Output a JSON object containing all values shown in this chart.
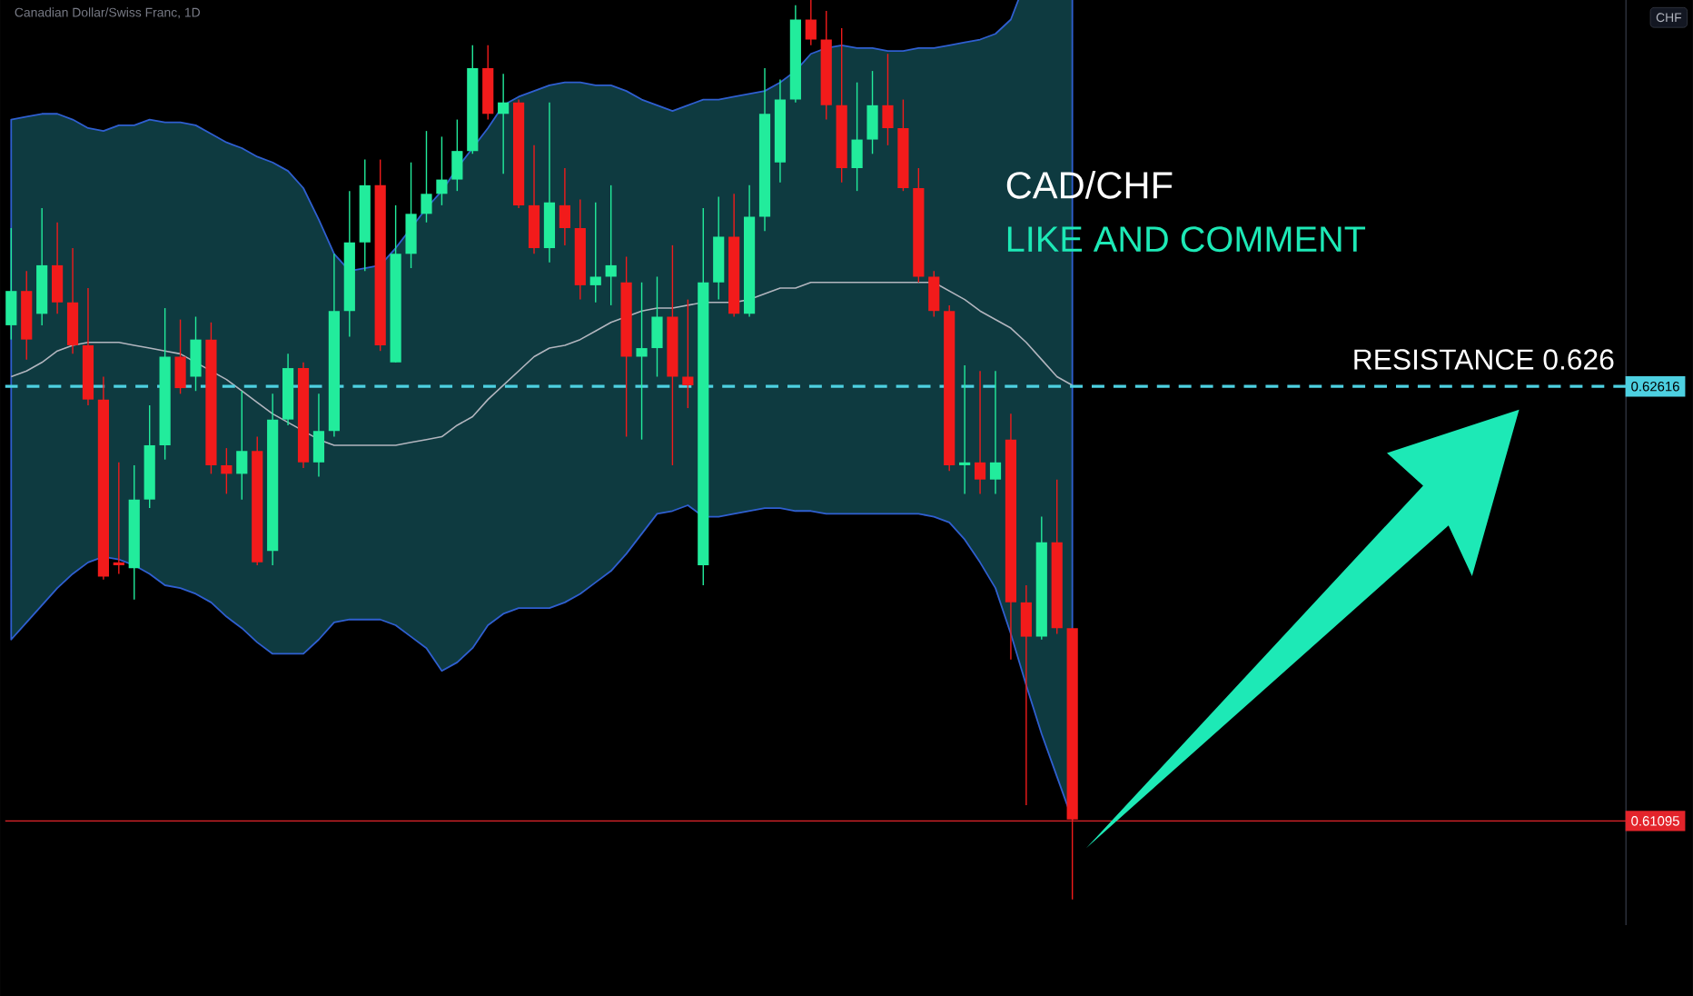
{
  "chart_data": {
    "type": "candlestick",
    "title": "CAD/CHF",
    "subtitle": "LIKE AND COMMENT",
    "annotations": [
      "Canadian Dollar/Swiss Franc, 1D",
      "CHF",
      {
        "text": "RESISTANCE 0.626",
        "y": 0.62616
      }
    ],
    "categories": [
      null,
      null,
      null,
      null,
      null,
      null,
      null,
      null,
      null,
      null,
      null,
      null,
      null,
      null,
      null,
      null,
      null,
      null,
      null,
      null,
      null,
      null,
      null,
      null,
      null,
      null,
      null,
      null,
      null,
      null,
      null,
      null,
      null,
      null,
      null,
      null,
      null,
      null,
      null,
      null,
      null,
      null,
      null,
      null,
      null,
      null,
      null,
      null,
      null,
      null,
      null,
      null,
      null,
      null,
      null,
      null,
      null,
      null,
      null,
      null,
      null,
      null,
      null,
      null,
      null,
      null,
      null,
      null,
      null,
      null
    ],
    "ohlc": [
      [
        0.6283,
        0.6317,
        0.6278,
        0.6295
      ],
      [
        0.6295,
        0.6302,
        0.6271,
        0.6278
      ],
      [
        0.6287,
        0.6324,
        0.6283,
        0.6304
      ],
      [
        0.6304,
        0.6319,
        0.6287,
        0.6291
      ],
      [
        0.6291,
        0.631,
        0.6273,
        0.6276
      ],
      [
        0.6276,
        0.6296,
        0.6255,
        0.6257
      ],
      [
        0.6257,
        0.6265,
        0.6194,
        0.6195
      ],
      [
        0.62,
        0.6235,
        0.6196,
        0.6199
      ],
      [
        0.6198,
        0.6234,
        0.6187,
        0.6222
      ],
      [
        0.6222,
        0.6255,
        0.6219,
        0.6241
      ],
      [
        0.6241,
        0.6289,
        0.6236,
        0.6272
      ],
      [
        0.6272,
        0.6285,
        0.6259,
        0.6261
      ],
      [
        0.6265,
        0.6286,
        0.626,
        0.6278
      ],
      [
        0.6278,
        0.6284,
        0.6231,
        0.6234
      ],
      [
        0.6234,
        0.624,
        0.6224,
        0.6231
      ],
      [
        0.6231,
        0.626,
        0.6222,
        0.6239
      ],
      [
        0.6239,
        0.6244,
        0.6199,
        0.62
      ],
      [
        0.6204,
        0.6259,
        0.6199,
        0.625
      ],
      [
        0.625,
        0.6273,
        0.6248,
        0.6268
      ],
      [
        0.6268,
        0.627,
        0.6233,
        0.6235
      ],
      [
        0.6235,
        0.6259,
        0.623,
        0.6246
      ],
      [
        0.6246,
        0.6308,
        0.6244,
        0.6288
      ],
      [
        0.6288,
        0.633,
        0.6279,
        0.6312
      ],
      [
        0.6312,
        0.6341,
        0.6302,
        0.6332
      ],
      [
        0.6332,
        0.6341,
        0.6274,
        0.6276
      ],
      [
        0.627,
        0.6325,
        0.627,
        0.6308
      ],
      [
        0.6308,
        0.634,
        0.6303,
        0.6322
      ],
      [
        0.6322,
        0.6351,
        0.6319,
        0.6329
      ],
      [
        0.6329,
        0.6349,
        0.6325,
        0.6334
      ],
      [
        0.6334,
        0.6355,
        0.633,
        0.6344
      ],
      [
        0.6344,
        0.6381,
        0.6343,
        0.6373
      ],
      [
        0.6373,
        0.6381,
        0.6355,
        0.6357
      ],
      [
        0.6357,
        0.6371,
        0.6336,
        0.6361
      ],
      [
        0.6361,
        0.6362,
        0.6324,
        0.6325
      ],
      [
        0.6325,
        0.6346,
        0.6308,
        0.631
      ],
      [
        0.631,
        0.6361,
        0.6305,
        0.6326
      ],
      [
        0.6325,
        0.6338,
        0.6311,
        0.6317
      ],
      [
        0.6317,
        0.6327,
        0.6292,
        0.6297
      ],
      [
        0.6297,
        0.6326,
        0.6291,
        0.63
      ],
      [
        0.63,
        0.6332,
        0.629,
        0.6304
      ],
      [
        0.6298,
        0.6307,
        0.6244,
        0.6272
      ],
      [
        0.6272,
        0.6298,
        0.6243,
        0.6275
      ],
      [
        0.6275,
        0.63,
        0.6265,
        0.6286
      ],
      [
        0.6286,
        0.6311,
        0.6234,
        0.6265
      ],
      [
        0.6265,
        0.6292,
        0.6254,
        0.6262
      ],
      [
        0.6199,
        0.6324,
        0.6192,
        0.6298
      ],
      [
        0.6298,
        0.6328,
        0.6292,
        0.6314
      ],
      [
        0.6314,
        0.6329,
        0.6286,
        0.6287
      ],
      [
        0.6287,
        0.6332,
        0.6286,
        0.6321
      ],
      [
        0.6321,
        0.6373,
        0.6316,
        0.6357
      ],
      [
        0.634,
        0.6369,
        0.6333,
        0.6362
      ],
      [
        0.6362,
        0.6395,
        0.6361,
        0.639
      ],
      [
        0.639,
        0.6397,
        0.6381,
        0.6383
      ],
      [
        0.6383,
        0.6393,
        0.6355,
        0.636
      ],
      [
        0.636,
        0.6387,
        0.6333,
        0.6338
      ],
      [
        0.6338,
        0.6368,
        0.633,
        0.6348
      ],
      [
        0.6348,
        0.6372,
        0.6343,
        0.636
      ],
      [
        0.636,
        0.6378,
        0.6346,
        0.6352
      ],
      [
        0.6352,
        0.6362,
        0.633,
        0.6331
      ],
      [
        0.6331,
        0.6338,
        0.6298,
        0.63
      ],
      [
        0.63,
        0.6302,
        0.6286,
        0.6288
      ],
      [
        0.6288,
        0.629,
        0.6232,
        0.6234
      ],
      [
        0.6234,
        0.6269,
        0.6224,
        0.6235
      ],
      [
        0.6235,
        0.6267,
        0.6224,
        0.6229
      ],
      [
        0.6229,
        0.6267,
        0.6224,
        0.6235
      ],
      [
        0.6243,
        0.6252,
        0.6166,
        0.6186
      ],
      [
        0.6186,
        0.6192,
        0.6115,
        0.6174
      ],
      [
        0.6174,
        0.6216,
        0.6173,
        0.6207
      ],
      [
        0.6207,
        0.6229,
        0.6175,
        0.6177
      ],
      [
        0.6177,
        0.6177,
        0.6082,
        0.611
      ]
    ],
    "series": [
      {
        "type": "line",
        "color": "#b2b5be",
        "values": [
          0.6265,
          0.6267,
          0.627,
          0.6274,
          0.6276,
          0.6277,
          0.6277,
          0.6277,
          0.6276,
          0.6275,
          0.6274,
          0.6273,
          0.627,
          0.6267,
          0.6264,
          0.626,
          0.6256,
          0.6252,
          0.6249,
          0.6246,
          0.6243,
          0.6241,
          0.6241,
          0.6241,
          0.6241,
          0.6241,
          0.6242,
          0.6243,
          0.6244,
          0.6248,
          0.6251,
          0.6257,
          0.6262,
          0.6267,
          0.6272,
          0.6275,
          0.6276,
          0.6278,
          0.6281,
          0.6284,
          0.6286,
          0.6288,
          0.6289,
          0.6289,
          0.629,
          0.6291,
          0.6291,
          0.6291,
          0.6292,
          0.6294,
          0.6296,
          0.6296,
          0.6298,
          0.6298,
          0.6298,
          0.6298,
          0.6298,
          0.6298,
          0.6298,
          0.6298,
          0.6298,
          0.6295,
          0.6292,
          0.6288,
          0.6285,
          0.6282,
          0.6277,
          0.6271,
          0.6265,
          0.6262
        ],
        "lower": [
          0.6173,
          0.6179,
          0.6185,
          0.6191,
          0.6196,
          0.62,
          0.6202,
          0.6201,
          0.6199,
          0.6196,
          0.6192,
          0.6191,
          0.6189,
          0.6186,
          0.6181,
          0.6177,
          0.6172,
          0.6168,
          0.6168,
          0.6168,
          0.6173,
          0.6179,
          0.618,
          0.618,
          0.618,
          0.6178,
          0.6174,
          0.617,
          0.6162,
          0.6165,
          0.617,
          0.6178,
          0.6182,
          0.6184,
          0.6184,
          0.6184,
          0.6186,
          0.6189,
          0.6193,
          0.6197,
          0.6203,
          0.621,
          0.6217,
          0.6218,
          0.622,
          0.6216,
          0.6216,
          0.6217,
          0.6218,
          0.6219,
          0.6219,
          0.6218,
          0.6218,
          0.6217,
          0.6217,
          0.6217,
          0.6217,
          0.6217,
          0.6217,
          0.6217,
          0.6216,
          0.6214,
          0.6208,
          0.62,
          0.6191,
          0.6175,
          0.6157,
          0.614,
          0.6125,
          0.611
        ],
        "upper": [
          0.6355,
          0.6356,
          0.6357,
          0.6357,
          0.6355,
          0.6352,
          0.6351,
          0.6353,
          0.6353,
          0.6355,
          0.6354,
          0.6354,
          0.6353,
          0.635,
          0.6347,
          0.6345,
          0.6342,
          0.634,
          0.6337,
          0.6331,
          0.632,
          0.6308,
          0.6302,
          0.6303,
          0.6304,
          0.631,
          0.6317,
          0.6324,
          0.633,
          0.6338,
          0.6345,
          0.6352,
          0.636,
          0.6363,
          0.6365,
          0.6367,
          0.6368,
          0.6368,
          0.6367,
          0.6367,
          0.6365,
          0.6362,
          0.636,
          0.6358,
          0.636,
          0.6362,
          0.6362,
          0.6363,
          0.6364,
          0.6365,
          0.6368,
          0.6372,
          0.6378,
          0.638,
          0.6381,
          0.638,
          0.638,
          0.6379,
          0.6379,
          0.638,
          0.638,
          0.6381,
          0.6382,
          0.6383,
          0.6385,
          0.639,
          0.6404,
          0.6405,
          0.6404,
          0.6405
        ]
      }
    ],
    "ref_lines": [
      {
        "axis": "y",
        "value": 0.62616,
        "color": "#4dd0e1",
        "line_style": "dashed"
      },
      {
        "axis": "y",
        "value": 0.61095,
        "color": "#e3242b",
        "line_style": "solid"
      }
    ],
    "ylim": [
      0.6073,
      0.6406
    ],
    "yticks": [
      0.62616,
      0.61095
    ],
    "tick_labels": "y"
  }
}
